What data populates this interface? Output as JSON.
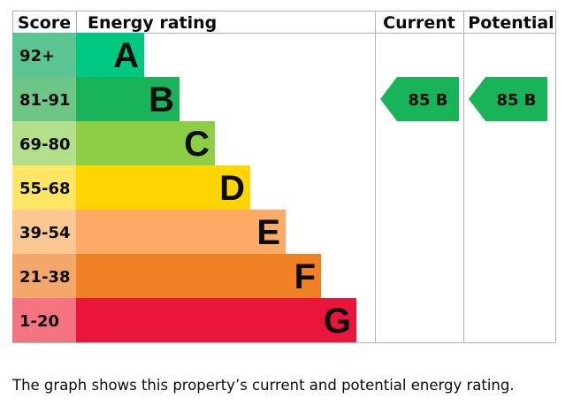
{
  "chart_data": {
    "type": "bar",
    "headers": {
      "score": "Score",
      "rating": "Energy rating",
      "current": "Current",
      "potential": "Potential"
    },
    "bands": [
      {
        "range": "92+",
        "letter": "A",
        "relative_length": 1,
        "score_color": "#5ac592",
        "bar_color": "#00c781"
      },
      {
        "range": "81-91",
        "letter": "B",
        "relative_length": 2,
        "score_color": "#6dc686",
        "bar_color": "#19b459"
      },
      {
        "range": "69-80",
        "letter": "C",
        "relative_length": 3,
        "score_color": "#b4df8a",
        "bar_color": "#8dce46"
      },
      {
        "range": "55-68",
        "letter": "D",
        "relative_length": 4,
        "score_color": "#ffe566",
        "bar_color": "#ffd500"
      },
      {
        "range": "39-54",
        "letter": "E",
        "relative_length": 5,
        "score_color": "#fbc894",
        "bar_color": "#fcaa65"
      },
      {
        "range": "21-38",
        "letter": "F",
        "relative_length": 6,
        "score_color": "#f3a76a",
        "bar_color": "#ef8023"
      },
      {
        "range": "1-20",
        "letter": "G",
        "relative_length": 7,
        "score_color": "#f37381",
        "bar_color": "#e9153b"
      }
    ],
    "current": {
      "value": 85,
      "letter": "B",
      "label": "85  B",
      "color": "#19b459"
    },
    "potential": {
      "value": 85,
      "letter": "B",
      "label": "85  B",
      "color": "#19b459"
    }
  },
  "caption": "The graph shows this property’s current and potential energy rating."
}
